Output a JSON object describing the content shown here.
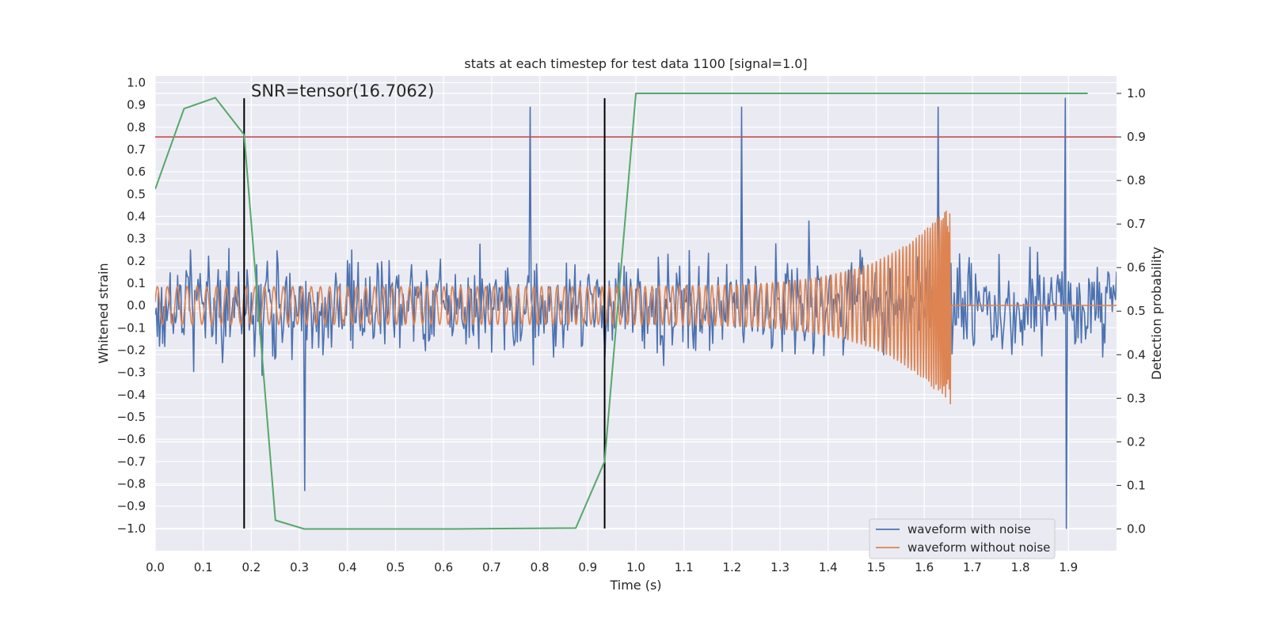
{
  "chart_data": {
    "type": "line",
    "title": "stats at each timestep for test data 1100 [signal=1.0]",
    "xlabel": "Time (s)",
    "ylabel": "Whitened strain",
    "y2label": "Detection probability",
    "xlim": [
      0.0,
      2.0
    ],
    "ylim": [
      -1.1,
      1.03
    ],
    "y2lim": [
      -0.05,
      1.04
    ],
    "x_ticks": [
      0.0,
      0.1,
      0.2,
      0.3,
      0.4,
      0.5,
      0.6,
      0.7,
      0.8,
      0.9,
      1.0,
      1.1,
      1.2,
      1.3,
      1.4,
      1.5,
      1.6,
      1.7,
      1.8,
      1.9
    ],
    "y_ticks": [
      -1.0,
      -0.9,
      -0.8,
      -0.7,
      -0.6,
      -0.5,
      -0.4,
      -0.3,
      -0.2,
      -0.1,
      0.0,
      0.1,
      0.2,
      0.3,
      0.4,
      0.5,
      0.6,
      0.7,
      0.8,
      0.9,
      1.0
    ],
    "y2_ticks": [
      0.0,
      0.1,
      0.2,
      0.3,
      0.4,
      0.5,
      0.6,
      0.7,
      0.8,
      0.9,
      1.0
    ],
    "grid": true,
    "legend_position": "lower-right",
    "annotation": "SNR=tensor(16.7062)",
    "threshold": {
      "axis": "y2",
      "value": 0.9,
      "color": "#c44e52"
    },
    "vlines": [
      {
        "x": 0.185,
        "y_range": [
          -1.0,
          0.93
        ],
        "color": "#000000"
      },
      {
        "x": 0.935,
        "y_range": [
          -1.0,
          0.93
        ],
        "color": "#000000"
      }
    ],
    "series": [
      {
        "name": "waveform with noise",
        "color": "#4c72b0",
        "kind": "noise",
        "x_range": [
          0.0,
          2.0
        ],
        "amplitude_typical": 0.25,
        "notable_peaks": [
          [
            0.312,
            -0.83
          ],
          [
            0.78,
            0.89
          ],
          [
            1.22,
            0.89
          ],
          [
            1.63,
            0.89
          ],
          [
            1.895,
            0.93
          ],
          [
            1.895,
            -1.0
          ]
        ]
      },
      {
        "name": "waveform without noise",
        "color": "#dd8452",
        "kind": "chirp",
        "x_range": [
          0.0,
          2.0
        ],
        "merger_time": 1.655,
        "amplitude_start": 0.085,
        "amplitude_peak": 0.46,
        "frequency_start_hz": 48
      },
      {
        "name": "detection probability",
        "color": "#55a868",
        "axis": "y2",
        "show_in_legend": false,
        "x": [
          0.0,
          0.06,
          0.125,
          0.185,
          0.25,
          0.31,
          0.62,
          0.875,
          0.935,
          1.0,
          1.94
        ],
        "values": [
          0.78,
          0.965,
          0.99,
          0.905,
          0.02,
          0.0,
          0.0,
          0.002,
          0.155,
          1.0,
          1.0
        ]
      }
    ]
  }
}
